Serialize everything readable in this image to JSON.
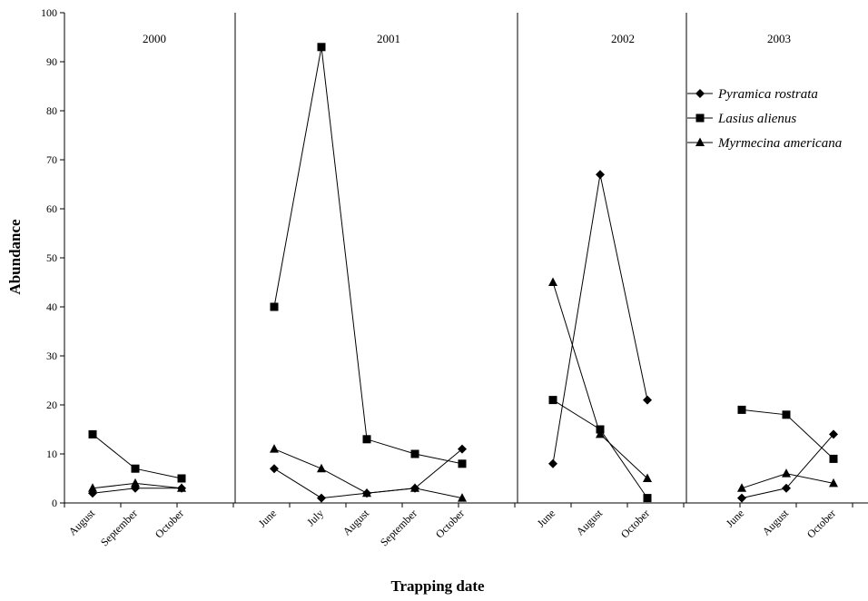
{
  "chart_data": {
    "type": "line",
    "xlabel": "Trapping date",
    "ylabel": "Abundance",
    "ylim": [
      0,
      100
    ],
    "yticks": [
      0,
      10,
      20,
      30,
      40,
      50,
      60,
      70,
      80,
      90,
      100
    ],
    "grid": false,
    "legend_position": "top-right",
    "panels": [
      {
        "year": "2000",
        "categories": [
          "August",
          "September",
          "October"
        ],
        "series": [
          {
            "name": "Pyramica rostrata",
            "marker": "diamond",
            "values": [
              2,
              3,
              3
            ]
          },
          {
            "name": "Lasius alienus",
            "marker": "square",
            "values": [
              14,
              7,
              5
            ]
          },
          {
            "name": "Myrmecina americana",
            "marker": "triangle",
            "values": [
              3,
              4,
              3
            ]
          }
        ]
      },
      {
        "year": "2001",
        "categories": [
          "June",
          "July",
          "August",
          "September",
          "October"
        ],
        "series": [
          {
            "name": "Pyramica rostrata",
            "marker": "diamond",
            "values": [
              7,
              1,
              2,
              3,
              11
            ]
          },
          {
            "name": "Lasius alienus",
            "marker": "square",
            "values": [
              40,
              93,
              13,
              10,
              8
            ]
          },
          {
            "name": "Myrmecina americana",
            "marker": "triangle",
            "values": [
              11,
              7,
              2,
              3,
              1
            ]
          }
        ]
      },
      {
        "year": "2002",
        "categories": [
          "June",
          "August",
          "October"
        ],
        "series": [
          {
            "name": "Pyramica rostrata",
            "marker": "diamond",
            "values": [
              8,
              67,
              21
            ]
          },
          {
            "name": "Lasius alienus",
            "marker": "square",
            "values": [
              21,
              15,
              1
            ]
          },
          {
            "name": "Myrmecina americana",
            "marker": "triangle",
            "values": [
              45,
              14,
              5
            ]
          }
        ]
      },
      {
        "year": "2003",
        "categories": [
          "June",
          "August",
          "October"
        ],
        "series": [
          {
            "name": "Pyramica rostrata",
            "marker": "diamond",
            "values": [
              1,
              3,
              14
            ]
          },
          {
            "name": "Lasius alienus",
            "marker": "square",
            "values": [
              19,
              18,
              9
            ]
          },
          {
            "name": "Myrmecina americana",
            "marker": "triangle",
            "values": [
              3,
              6,
              4
            ]
          }
        ]
      }
    ],
    "legend": [
      {
        "name": "Pyramica rostrata",
        "marker": "diamond"
      },
      {
        "name": "Lasius alienus",
        "marker": "square"
      },
      {
        "name": "Myrmecina americana",
        "marker": "triangle"
      }
    ]
  }
}
